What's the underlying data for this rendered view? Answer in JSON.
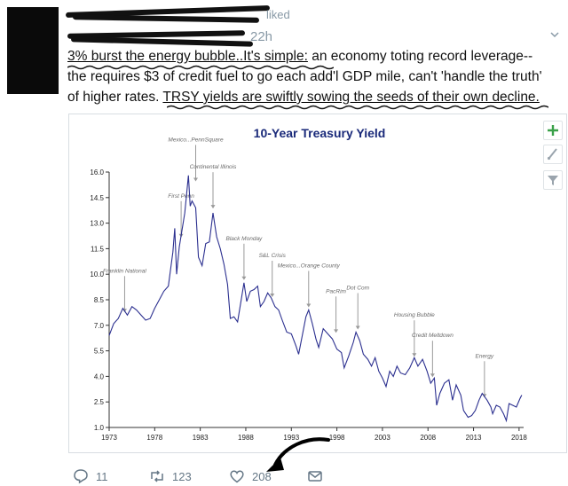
{
  "tweet": {
    "liked_text": "liked",
    "time": "22h",
    "lines": [
      {
        "pre": "",
        "u": "3% burst the energy bubble..It's simple:",
        "post": "  an economy toting record leverage--"
      },
      {
        "pre": "the requires $3 of credit fuel to go each add'l GDP mile, can't 'handle the truth'",
        "u": "",
        "post": ""
      },
      {
        "pre": "of higher rates.  ",
        "u": "TRSY yields are swiftly sowing the seeds of their own decline.",
        "post": ""
      }
    ]
  },
  "chart_tools": {
    "plus_icon": "plus-icon",
    "brush_icon": "brush-icon",
    "filter_icon": "filter-icon"
  },
  "chart_data": {
    "type": "line",
    "title": "10-Year Treasury Yield",
    "color": "#2b2f8f",
    "ylim": [
      1.0,
      16.0
    ],
    "yticks": [
      "16.0",
      "14.5",
      "13.0",
      "11.5",
      "10.0",
      "8.5",
      "7.0",
      "5.5",
      "4.0",
      "2.5",
      "1.0"
    ],
    "xlim": [
      1973,
      2018.5
    ],
    "xticks": [
      "1973",
      "1978",
      "1983",
      "1988",
      "1993",
      "1998",
      "2003",
      "2008",
      "2013",
      "2018"
    ],
    "points": [
      [
        1973,
        6.4
      ],
      [
        1973.5,
        7.1
      ],
      [
        1974,
        7.4
      ],
      [
        1974.5,
        8.0
      ],
      [
        1975,
        7.6
      ],
      [
        1975.5,
        8.1
      ],
      [
        1976,
        7.9
      ],
      [
        1976.5,
        7.6
      ],
      [
        1977,
        7.3
      ],
      [
        1977.5,
        7.4
      ],
      [
        1978,
        8.0
      ],
      [
        1978.5,
        8.5
      ],
      [
        1979,
        9.0
      ],
      [
        1979.5,
        9.3
      ],
      [
        1980,
        11.3
      ],
      [
        1980.2,
        12.7
      ],
      [
        1980.4,
        10.0
      ],
      [
        1980.7,
        11.6
      ],
      [
        1981,
        12.6
      ],
      [
        1981.3,
        13.6
      ],
      [
        1981.7,
        15.8
      ],
      [
        1981.9,
        14.0
      ],
      [
        1982.1,
        14.3
      ],
      [
        1982.5,
        13.9
      ],
      [
        1982.8,
        11.0
      ],
      [
        1983.2,
        10.5
      ],
      [
        1983.6,
        11.8
      ],
      [
        1984,
        11.9
      ],
      [
        1984.4,
        13.6
      ],
      [
        1984.8,
        12.2
      ],
      [
        1985.2,
        11.5
      ],
      [
        1985.6,
        10.6
      ],
      [
        1986,
        9.4
      ],
      [
        1986.3,
        7.4
      ],
      [
        1986.7,
        7.5
      ],
      [
        1987.1,
        7.2
      ],
      [
        1987.5,
        8.5
      ],
      [
        1987.8,
        9.5
      ],
      [
        1988.1,
        8.4
      ],
      [
        1988.5,
        9.0
      ],
      [
        1988.9,
        9.1
      ],
      [
        1989.3,
        9.3
      ],
      [
        1989.6,
        8.1
      ],
      [
        1990,
        8.4
      ],
      [
        1990.4,
        8.9
      ],
      [
        1990.8,
        8.6
      ],
      [
        1991.2,
        8.1
      ],
      [
        1991.6,
        7.9
      ],
      [
        1992,
        7.3
      ],
      [
        1992.5,
        6.6
      ],
      [
        1993,
        6.5
      ],
      [
        1993.5,
        5.8
      ],
      [
        1993.8,
        5.3
      ],
      [
        1994.2,
        6.4
      ],
      [
        1994.6,
        7.5
      ],
      [
        1994.9,
        7.9
      ],
      [
        1995.3,
        7.1
      ],
      [
        1995.7,
        6.2
      ],
      [
        1996,
        5.7
      ],
      [
        1996.5,
        6.8
      ],
      [
        1997,
        6.5
      ],
      [
        1997.5,
        6.2
      ],
      [
        1998,
        5.6
      ],
      [
        1998.5,
        5.4
      ],
      [
        1998.8,
        4.5
      ],
      [
        1999.3,
        5.2
      ],
      [
        1999.8,
        6.0
      ],
      [
        2000.1,
        6.6
      ],
      [
        2000.5,
        6.1
      ],
      [
        2000.9,
        5.3
      ],
      [
        2001.4,
        5.0
      ],
      [
        2001.8,
        4.6
      ],
      [
        2002.2,
        5.1
      ],
      [
        2002.6,
        4.3
      ],
      [
        2003,
        3.9
      ],
      [
        2003.4,
        3.4
      ],
      [
        2003.8,
        4.3
      ],
      [
        2004.2,
        4.0
      ],
      [
        2004.6,
        4.6
      ],
      [
        2005,
        4.2
      ],
      [
        2005.5,
        4.1
      ],
      [
        2006,
        4.5
      ],
      [
        2006.5,
        5.1
      ],
      [
        2006.9,
        4.6
      ],
      [
        2007.4,
        5.0
      ],
      [
        2007.9,
        4.3
      ],
      [
        2008.3,
        3.6
      ],
      [
        2008.7,
        3.9
      ],
      [
        2008.95,
        2.3
      ],
      [
        2009.3,
        3.0
      ],
      [
        2009.8,
        3.6
      ],
      [
        2010.3,
        3.8
      ],
      [
        2010.7,
        2.6
      ],
      [
        2011.1,
        3.5
      ],
      [
        2011.6,
        2.9
      ],
      [
        2011.9,
        2.0
      ],
      [
        2012.4,
        1.6
      ],
      [
        2012.8,
        1.7
      ],
      [
        2013.2,
        2.0
      ],
      [
        2013.6,
        2.6
      ],
      [
        2013.95,
        3.0
      ],
      [
        2014.5,
        2.6
      ],
      [
        2014.9,
        2.2
      ],
      [
        2015.1,
        1.8
      ],
      [
        2015.5,
        2.3
      ],
      [
        2015.9,
        2.2
      ],
      [
        2016.3,
        1.8
      ],
      [
        2016.6,
        1.4
      ],
      [
        2016.9,
        2.4
      ],
      [
        2017.3,
        2.3
      ],
      [
        2017.7,
        2.2
      ],
      [
        2018.1,
        2.7
      ],
      [
        2018.3,
        2.9
      ]
    ],
    "annotations": [
      {
        "label": "Franklin National",
        "x": 1974.7,
        "y": 7.6,
        "align": "middle"
      },
      {
        "label": "First Penn",
        "x": 1980.9,
        "y": 12.0,
        "align": "middle"
      },
      {
        "label": "Mexico...PennSquare",
        "x": 1982.5,
        "y": 15.3,
        "align": "middle"
      },
      {
        "label": "Continental Illinois",
        "x": 1984.4,
        "y": 13.7,
        "align": "middle"
      },
      {
        "label": "Black Monday",
        "x": 1987.8,
        "y": 9.5,
        "align": "middle"
      },
      {
        "label": "S&L Crisis",
        "x": 1990.9,
        "y": 8.5,
        "align": "middle"
      },
      {
        "label": "Mexico...Orange County",
        "x": 1994.9,
        "y": 7.9,
        "align": "middle"
      },
      {
        "label": "PacRim",
        "x": 1997.9,
        "y": 6.4,
        "align": "middle"
      },
      {
        "label": "Dot Com",
        "x": 2000.3,
        "y": 6.6,
        "align": "middle"
      },
      {
        "label": "Housing Bubble",
        "x": 2006.5,
        "y": 5.0,
        "align": "middle"
      },
      {
        "label": "Credit Meltdown",
        "x": 2008.5,
        "y": 3.8,
        "align": "middle"
      },
      {
        "label": "Energy",
        "x": 2014.2,
        "y": 2.6,
        "align": "middle"
      }
    ]
  },
  "actions": {
    "reply_count": "11",
    "retweet_count": "123",
    "like_count": "208"
  }
}
